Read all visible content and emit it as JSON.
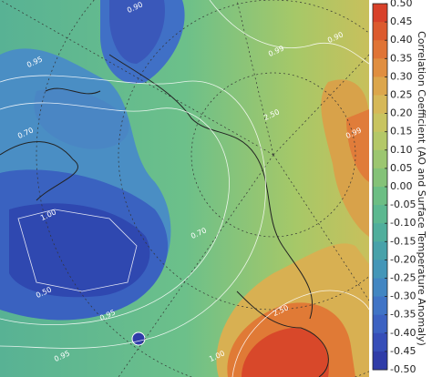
{
  "map": {
    "colorbar": {
      "label": "Correlation Coefficient (AO and Surface Temperature Anomaly)",
      "clim": [
        -0.5,
        0.5
      ],
      "ticks": [
        {
          "value": 0.5,
          "label": "0.50"
        },
        {
          "value": 0.45,
          "label": "0.45"
        },
        {
          "value": 0.4,
          "label": "0.40"
        },
        {
          "value": 0.35,
          "label": "0.35"
        },
        {
          "value": 0.3,
          "label": "0.30"
        },
        {
          "value": 0.25,
          "label": "0.25"
        },
        {
          "value": 0.2,
          "label": "0.20"
        },
        {
          "value": 0.15,
          "label": "0.15"
        },
        {
          "value": 0.1,
          "label": "0.10"
        },
        {
          "value": 0.05,
          "label": "0.05"
        },
        {
          "value": 0,
          "label": "0.00"
        },
        {
          "value": -0.05,
          "label": "-0.05"
        },
        {
          "value": -0.1,
          "label": "-0.10"
        },
        {
          "value": -0.15,
          "label": "-0.15"
        },
        {
          "value": -0.2,
          "label": "-0.20"
        },
        {
          "value": -0.25,
          "label": "-0.25"
        },
        {
          "value": -0.3,
          "label": "-0.30"
        },
        {
          "value": -0.35,
          "label": "-0.35"
        },
        {
          "value": -0.4,
          "label": "-0.40"
        },
        {
          "value": -0.45,
          "label": "-0.45"
        },
        {
          "value": -0.5,
          "label": "-0.50"
        }
      ],
      "colors": [
        "#d8412a",
        "#dc5a2e",
        "#e07436",
        "#e08e40",
        "#dca64c",
        "#d6b858",
        "#c8c460",
        "#b4c868",
        "#9cc670",
        "#84c278",
        "#6cbe84",
        "#5cb890",
        "#50ae9c",
        "#48a2aa",
        "#4496b8",
        "#4286c2",
        "#4074c6",
        "#3c62c2",
        "#364eb8",
        "#2f3ca8"
      ]
    },
    "contour_labels": [
      "0.90",
      "0.95",
      "0.70",
      "0.99",
      "1.00",
      "0.95",
      "2.50",
      "0.90",
      "0.99",
      "1.00",
      "0.95",
      "0.70",
      "0.50",
      "2.50"
    ]
  }
}
